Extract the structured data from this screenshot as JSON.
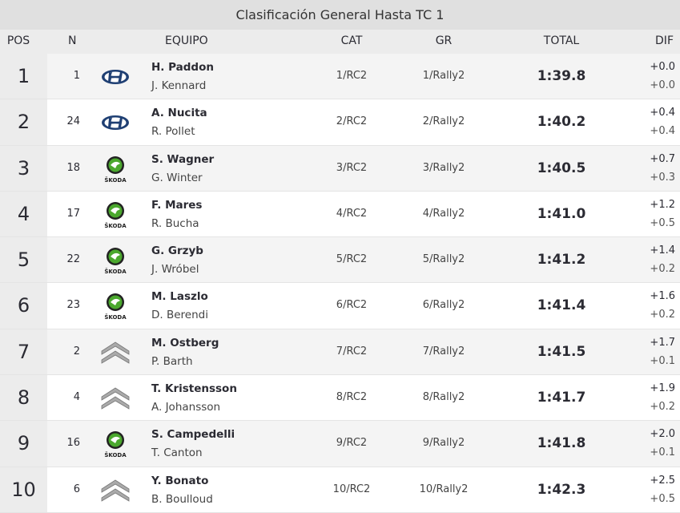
{
  "title": "Clasificación General Hasta TC 1",
  "columns": {
    "pos": "POS",
    "n": "N",
    "equipo": "EQUIPO",
    "cat": "CAT",
    "gr": "GR",
    "total": "TOTAL",
    "dif": "DIF"
  },
  "rows": [
    {
      "pos": "1",
      "n": "1",
      "brand": "hyundai",
      "driver": "H. Paddon",
      "codriver": "J. Kennard",
      "cat": "1/RC2",
      "gr": "1/Rally2",
      "total": "1:39.8",
      "dif1": "+0.0",
      "dif2": "+0.0"
    },
    {
      "pos": "2",
      "n": "24",
      "brand": "hyundai",
      "driver": "A. Nucita",
      "codriver": "R. Pollet",
      "cat": "2/RC2",
      "gr": "2/Rally2",
      "total": "1:40.2",
      "dif1": "+0.4",
      "dif2": "+0.4"
    },
    {
      "pos": "3",
      "n": "18",
      "brand": "skoda",
      "driver": "S. Wagner",
      "codriver": "G. Winter",
      "cat": "3/RC2",
      "gr": "3/Rally2",
      "total": "1:40.5",
      "dif1": "+0.7",
      "dif2": "+0.3"
    },
    {
      "pos": "4",
      "n": "17",
      "brand": "skoda",
      "driver": "F. Mares",
      "codriver": "R. Bucha",
      "cat": "4/RC2",
      "gr": "4/Rally2",
      "total": "1:41.0",
      "dif1": "+1.2",
      "dif2": "+0.5"
    },
    {
      "pos": "5",
      "n": "22",
      "brand": "skoda",
      "driver": "G. Grzyb",
      "codriver": "J. Wróbel",
      "cat": "5/RC2",
      "gr": "5/Rally2",
      "total": "1:41.2",
      "dif1": "+1.4",
      "dif2": "+0.2"
    },
    {
      "pos": "6",
      "n": "23",
      "brand": "skoda",
      "driver": "M. Laszlo",
      "codriver": "D. Berendi",
      "cat": "6/RC2",
      "gr": "6/Rally2",
      "total": "1:41.4",
      "dif1": "+1.6",
      "dif2": "+0.2"
    },
    {
      "pos": "7",
      "n": "2",
      "brand": "citroen",
      "driver": "M. Ostberg",
      "codriver": "P. Barth",
      "cat": "7/RC2",
      "gr": "7/Rally2",
      "total": "1:41.5",
      "dif1": "+1.7",
      "dif2": "+0.1"
    },
    {
      "pos": "8",
      "n": "4",
      "brand": "citroen",
      "driver": "T. Kristensson",
      "codriver": "A. Johansson",
      "cat": "8/RC2",
      "gr": "8/Rally2",
      "total": "1:41.7",
      "dif1": "+1.9",
      "dif2": "+0.2"
    },
    {
      "pos": "9",
      "n": "16",
      "brand": "skoda",
      "driver": "S. Campedelli",
      "codriver": "T. Canton",
      "cat": "9/RC2",
      "gr": "9/Rally2",
      "total": "1:41.8",
      "dif1": "+2.0",
      "dif2": "+0.1"
    },
    {
      "pos": "10",
      "n": "6",
      "brand": "citroen",
      "driver": "Y. Bonato",
      "codriver": "B. Boulloud",
      "cat": "10/RC2",
      "gr": "10/Rally2",
      "total": "1:42.3",
      "dif1": "+2.5",
      "dif2": "+0.5"
    }
  ],
  "skoda_wordmark": "ŠKODA"
}
